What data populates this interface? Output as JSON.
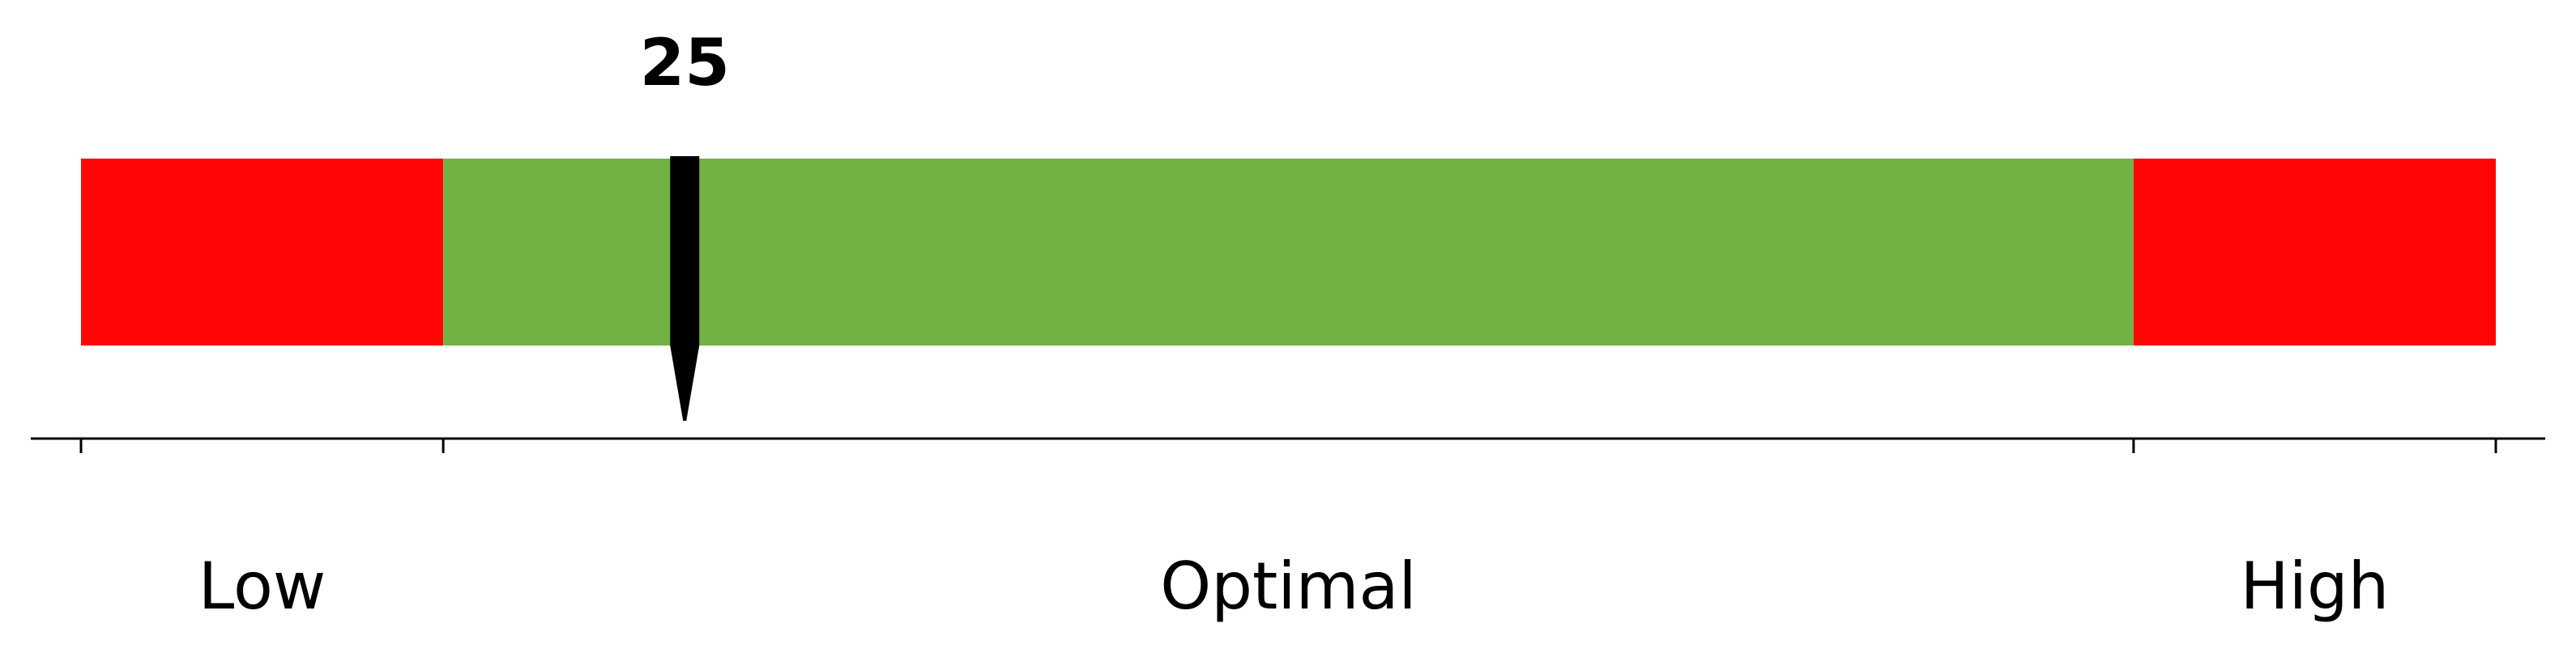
{
  "chart_data": {
    "type": "bullet-gauge",
    "title": "",
    "value": 25,
    "value_label": "25",
    "range": [
      0,
      100
    ],
    "zones": [
      {
        "name": "Low",
        "start": 0,
        "end": 15,
        "color": "#ff0505"
      },
      {
        "name": "Optimal",
        "start": 15,
        "end": 85,
        "color": "#72b244"
      },
      {
        "name": "High",
        "start": 85,
        "end": 100,
        "color": "#ff0505"
      }
    ],
    "tick_values": [
      0,
      15,
      85,
      100
    ],
    "labels": [
      {
        "text": "Low",
        "zone": 0
      },
      {
        "text": "Optimal",
        "zone": 1
      },
      {
        "text": "High",
        "zone": 2
      }
    ],
    "marker_color": "#000000",
    "axis_color": "#000000"
  }
}
